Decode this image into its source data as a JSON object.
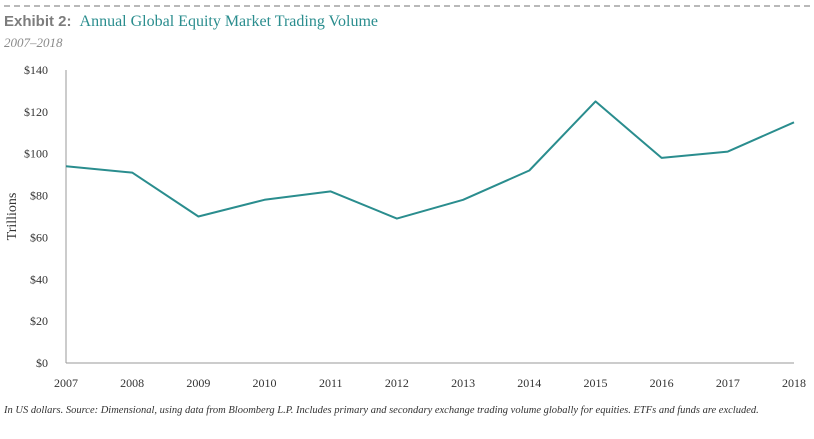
{
  "header": {
    "prefix": "Exhibit 2:",
    "title": "Annual  Global Equity Market Trading Volume",
    "subtitle": "2007–2018"
  },
  "footnote": "In US dollars.   Source:   Dimensional, using data from Bloomberg   L.P. Includes primary and secondary   exchange trading volume  globally  for equities.  ETFs  and funds are excluded.",
  "chart_data": {
    "type": "line",
    "title": "Annual  Global Equity Market Trading Volume",
    "subtitle": "2007–2018",
    "xlabel": "",
    "ylabel": "Trillions",
    "categories": [
      "2007",
      "2008",
      "2009",
      "2010",
      "2011",
      "2012",
      "2013",
      "2014",
      "2015",
      "2016",
      "2017",
      "2018"
    ],
    "series": [
      {
        "values": [
          94,
          91,
          70,
          78,
          82,
          69,
          78,
          92,
          125,
          98,
          101,
          115
        ]
      }
    ],
    "ylim": [
      0,
      140
    ],
    "yticks": [
      0,
      20,
      40,
      60,
      80,
      100,
      120,
      140
    ],
    "ytick_labels": [
      "$0",
      "$20",
      "$40",
      "$60",
      "$80",
      "$100",
      "$120",
      "$140"
    ],
    "grid": false,
    "legend": "none",
    "line_color": "#2a8d8e"
  }
}
